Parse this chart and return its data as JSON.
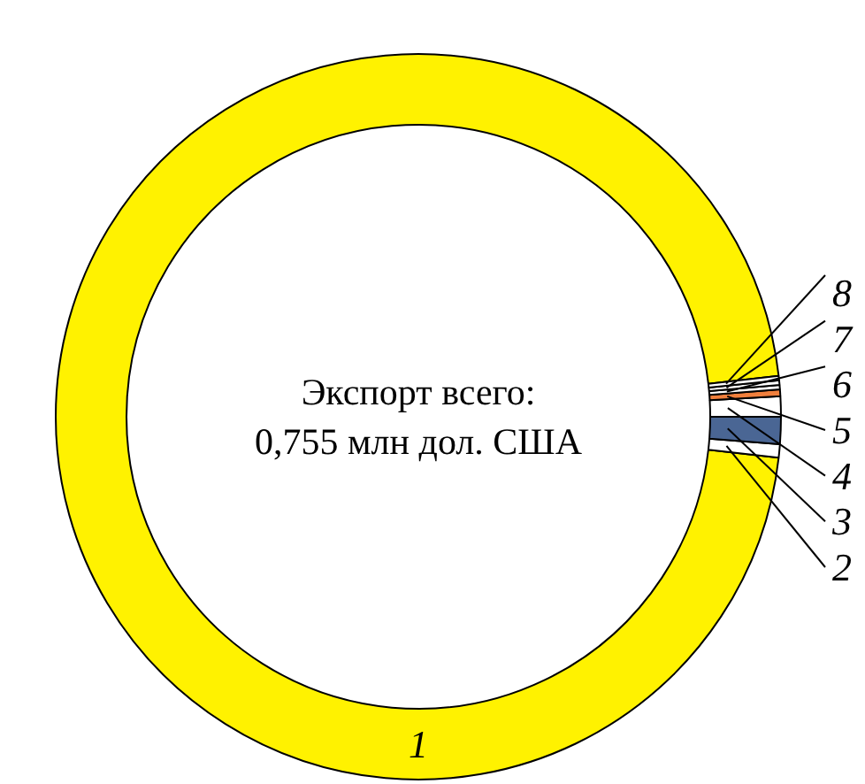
{
  "chart_data": {
    "type": "donut",
    "title": "Экспорт всего:",
    "subtitle": "0,755 млн дол. США",
    "categories": [
      "1",
      "2",
      "3",
      "4",
      "5",
      "6",
      "7",
      "8"
    ],
    "values": [
      96.4,
      0.6,
      1.2,
      0.9,
      0.3,
      0.2,
      0.2,
      0.2
    ],
    "colors": [
      "#fff200",
      "#ffffff",
      "#4a6694",
      "#ffffff",
      "#f07f3c",
      "#ffffff",
      "#ffffff",
      "#ffffff"
    ]
  }
}
